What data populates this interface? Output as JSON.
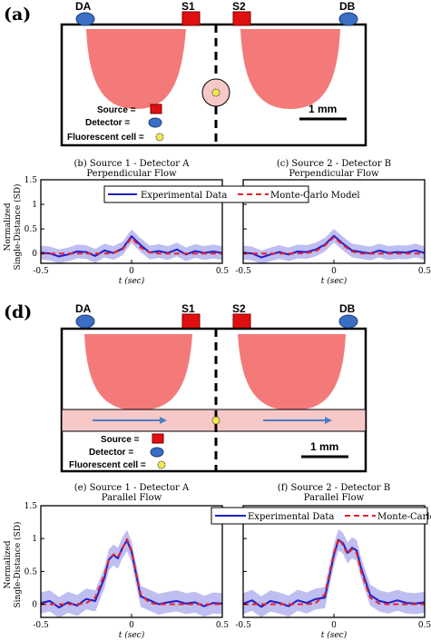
{
  "panels": {
    "a": {
      "label": "(a)",
      "da": "DA",
      "db": "DB",
      "s1": "S1",
      "s2": "S2",
      "legend_source": "Source =",
      "legend_detector": "Detector =",
      "legend_cell": "Fluorescent cell =",
      "scale": "1 mm"
    },
    "d": {
      "label": "(d)",
      "da": "DA",
      "db": "DB",
      "s1": "S1",
      "s2": "S2",
      "legend_source": "Source =",
      "legend_detector": "Detector =",
      "legend_cell": "Fluorescent cell =",
      "scale": "1 mm"
    }
  },
  "shared": {
    "ylabel_line1": "Normalized",
    "ylabel_line2": "Single-Distance (SD)",
    "xlabel": "t (sec)"
  },
  "legends": {
    "top": {
      "exp": "Experimental Data",
      "mc": "Monte-Carlo Model"
    },
    "bottom": {
      "exp": "Experimental Data",
      "mc": "Monte-Carlo Model"
    }
  },
  "colors": {
    "experimental": "#1f1fc8",
    "band": "#b3b3ee",
    "model": "#e8202a",
    "lobe": "#f47a7a",
    "flow": "#f7c8c8",
    "arrow": "#4a7fc7",
    "source": "#e01010",
    "detector": "#3a6fc4",
    "cell": "#f2e84a"
  },
  "chart_data": [
    {
      "id": "b",
      "type": "line",
      "title_line1": "(b) Source 1 - Detector A",
      "title_line2": "Perpendicular Flow",
      "xlim": [
        -0.5,
        0.5
      ],
      "ylim": [
        -0.2,
        1.5
      ],
      "xticks": [
        "-0.5",
        "0",
        "0.5"
      ],
      "yticks": [
        "0",
        "0.5",
        "1",
        "1.5"
      ],
      "x": [
        -0.5,
        -0.45,
        -0.4,
        -0.35,
        -0.3,
        -0.25,
        -0.2,
        -0.15,
        -0.1,
        -0.05,
        0,
        0.05,
        0.1,
        0.15,
        0.2,
        0.25,
        0.3,
        0.35,
        0.4,
        0.45,
        0.5
      ],
      "series": [
        {
          "name": "Experimental Data",
          "values": [
            0.02,
            0,
            -0.06,
            -0.02,
            0.04,
            0.03,
            -0.05,
            0.06,
            0.01,
            0.1,
            0.35,
            0.17,
            0.02,
            0.05,
            0.01,
            0.08,
            -0.02,
            0.05,
            0.01,
            0.04,
            0.01
          ],
          "band": 0.14
        },
        {
          "name": "Monte-Carlo Model",
          "values": [
            0,
            0,
            0,
            0,
            0,
            0,
            0,
            0,
            0.01,
            0.08,
            0.32,
            0.12,
            0.02,
            0,
            0,
            0,
            0,
            0,
            0,
            0,
            0
          ]
        }
      ]
    },
    {
      "id": "c",
      "type": "line",
      "title_line1": "(c) Source 2 - Detector B",
      "title_line2": "Perpendicular Flow",
      "xlim": [
        -0.5,
        0.5
      ],
      "ylim": [
        -0.2,
        1.5
      ],
      "xticks": [
        "-0.5",
        "0",
        "0.5"
      ],
      "yticks": [
        "0",
        "0.5",
        "1",
        "1.5"
      ],
      "x": [
        -0.5,
        -0.45,
        -0.4,
        -0.35,
        -0.3,
        -0.25,
        -0.2,
        -0.15,
        -0.1,
        -0.05,
        0,
        0.05,
        0.1,
        0.15,
        0.2,
        0.25,
        0.3,
        0.35,
        0.4,
        0.45,
        0.5
      ],
      "series": [
        {
          "name": "Experimental Data",
          "values": [
            0.02,
            0,
            -0.08,
            -0.02,
            0.03,
            -0.02,
            0.04,
            0.03,
            0.08,
            0.18,
            0.36,
            0.2,
            0.06,
            0.03,
            0,
            0.06,
            0.01,
            0.03,
            0.02,
            0.06,
            0.01
          ],
          "band": 0.14
        },
        {
          "name": "Monte-Carlo Model",
          "values": [
            0,
            0,
            0,
            0,
            0,
            0,
            0,
            0.01,
            0.05,
            0.16,
            0.33,
            0.17,
            0.04,
            0,
            0,
            0,
            0,
            0,
            0,
            0,
            0
          ]
        }
      ]
    },
    {
      "id": "e",
      "type": "line",
      "title_line1": "(e) Source 1 - Detector A",
      "title_line2": "Parallel Flow",
      "xlim": [
        -0.5,
        0.5
      ],
      "ylim": [
        -0.2,
        1.5
      ],
      "xticks": [
        "-0.5",
        "0",
        "0.5"
      ],
      "yticks": [
        "0",
        "0.5",
        "1",
        "1.5"
      ],
      "x": [
        -0.5,
        -0.45,
        -0.4,
        -0.35,
        -0.3,
        -0.25,
        -0.2,
        -0.15,
        -0.125,
        -0.1,
        -0.075,
        -0.05,
        -0.025,
        0,
        0.05,
        0.1,
        0.15,
        0.2,
        0.25,
        0.3,
        0.35,
        0.4,
        0.45,
        0.5
      ],
      "series": [
        {
          "name": "Experimental Data",
          "values": [
            0.02,
            0.05,
            -0.05,
            0.03,
            -0.02,
            0.08,
            0.05,
            0.4,
            0.68,
            0.75,
            0.7,
            0.86,
            0.97,
            0.8,
            0.12,
            0.06,
            0,
            0.03,
            0.05,
            0.01,
            0.03,
            -0.03,
            0.02,
            0.01
          ],
          "band": 0.16
        },
        {
          "name": "Monte-Carlo Model",
          "values": [
            0,
            0,
            0,
            0,
            0,
            0.02,
            0.1,
            0.45,
            0.68,
            0.76,
            0.72,
            0.85,
            0.99,
            0.82,
            0.15,
            0.02,
            0,
            0,
            0,
            0,
            0,
            0,
            0,
            0
          ]
        }
      ]
    },
    {
      "id": "f",
      "type": "line",
      "title_line1": "(f) Source 2 - Detector B",
      "title_line2": "Parallel Flow",
      "xlim": [
        -0.5,
        0.5
      ],
      "ylim": [
        -0.2,
        1.5
      ],
      "xticks": [
        "-0.5",
        "0",
        "0.5"
      ],
      "yticks": [
        "0",
        "0.5",
        "1",
        "1.5"
      ],
      "x": [
        -0.5,
        -0.45,
        -0.4,
        -0.35,
        -0.3,
        -0.25,
        -0.2,
        -0.15,
        -0.1,
        -0.05,
        0,
        0.025,
        0.05,
        0.075,
        0.1,
        0.125,
        0.15,
        0.2,
        0.25,
        0.3,
        0.35,
        0.4,
        0.45,
        0.5
      ],
      "series": [
        {
          "name": "Experimental Data",
          "values": [
            0.01,
            0.06,
            -0.04,
            0.05,
            0.02,
            -0.03,
            0.06,
            0.02,
            0.08,
            0.1,
            0.75,
            0.98,
            0.93,
            0.78,
            0.86,
            0.82,
            0.55,
            0.14,
            0.05,
            0.02,
            0.06,
            0.02,
            0.01,
            0.03
          ],
          "band": 0.16
        },
        {
          "name": "Monte-Carlo Model",
          "values": [
            0,
            0,
            0,
            0,
            0,
            0,
            0,
            0,
            0.02,
            0.15,
            0.78,
            1.0,
            0.9,
            0.76,
            0.84,
            0.78,
            0.5,
            0.1,
            0.01,
            0,
            0,
            0,
            0,
            0
          ]
        }
      ]
    }
  ]
}
